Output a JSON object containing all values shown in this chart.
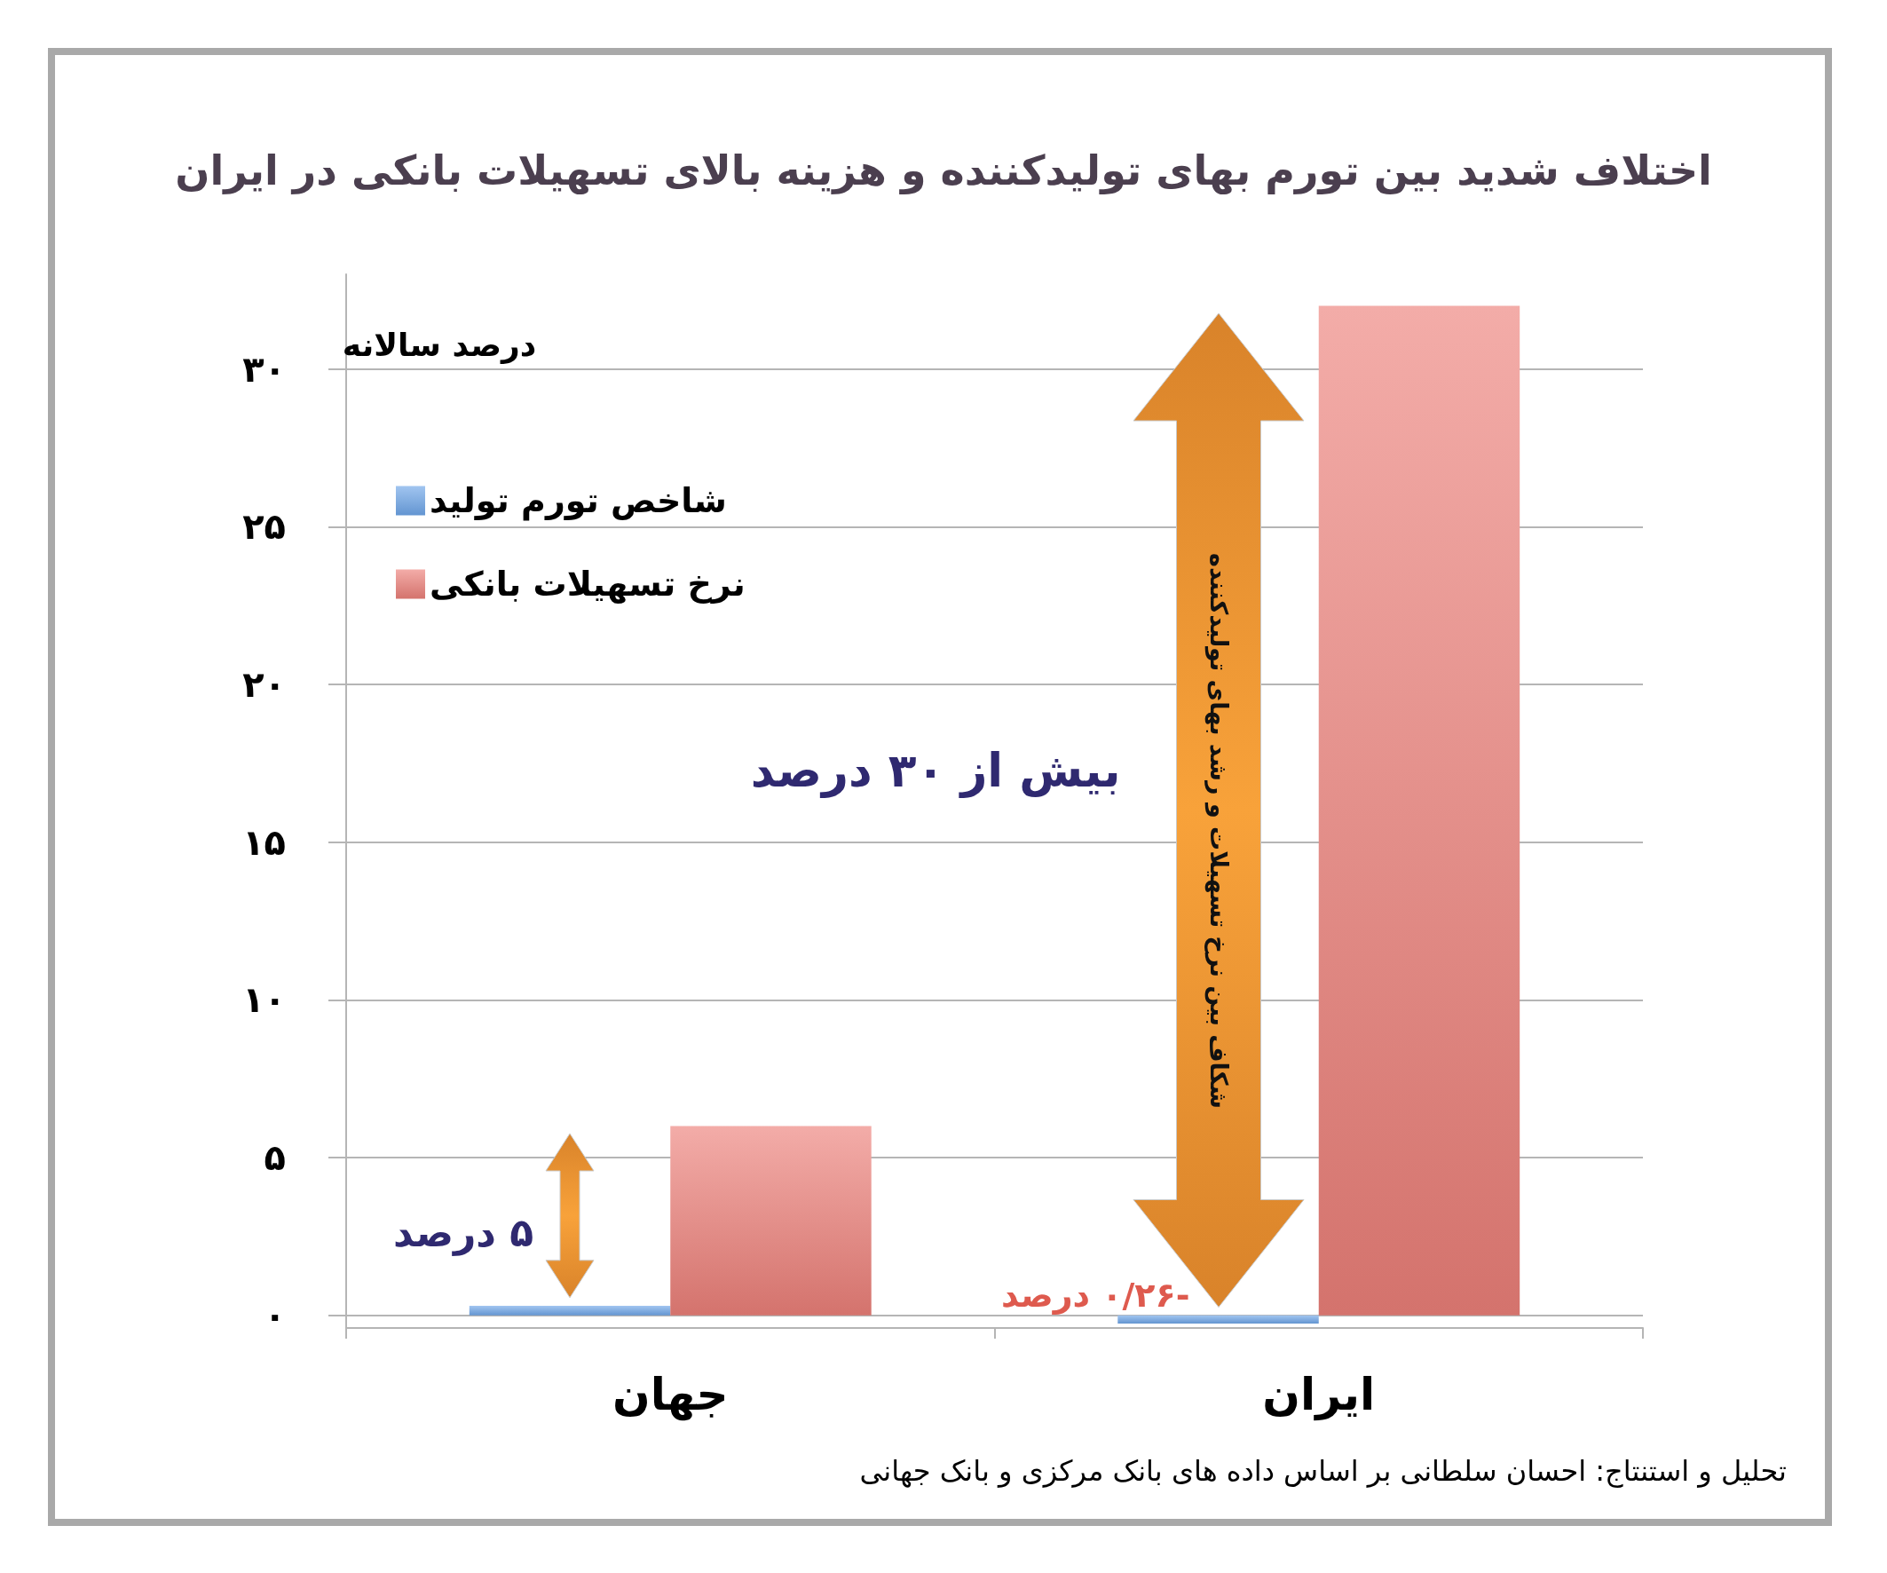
{
  "chart_data": {
    "type": "bar",
    "title": "اختلاف شدید بین تورم بهای تولیدکننده و هزینه بالای تسهیلات بانکی در ایران",
    "ylabel": "درصد سالانه",
    "categories": [
      "جهان",
      "ایران"
    ],
    "series": [
      {
        "name": "شاخص تورم تولید",
        "color": "#6ea5e8",
        "values": [
          0.3,
          -0.26
        ],
        "value_labels": [
          null,
          "-۰/۲۶ درصد"
        ]
      },
      {
        "name": "نرخ تسهیلات بانکی",
        "color": "#ec8079",
        "values": [
          6,
          32
        ]
      }
    ],
    "ylim": [
      -0.4,
      33
    ],
    "yticks": [
      {
        "value": 0,
        "label": "۰"
      },
      {
        "value": 5,
        "label": "۵"
      },
      {
        "value": 10,
        "label": "۱۰"
      },
      {
        "value": 15,
        "label": "۱۵"
      },
      {
        "value": 20,
        "label": "۲۰"
      },
      {
        "value": 25,
        "label": "۲۵"
      },
      {
        "value": 30,
        "label": "۳۰"
      }
    ],
    "grid": "y",
    "legend": "top left",
    "annotations": [
      "۵ درصد",
      "بیش از ۳۰ درصد",
      "شکاف بین نرخ تسهیلات و رشد بهای تولیدکننده",
      "تحلیل و استنتاج: احسان سلطانی بر اساس داده های بانک مرکزی و بانک جهانی"
    ]
  }
}
